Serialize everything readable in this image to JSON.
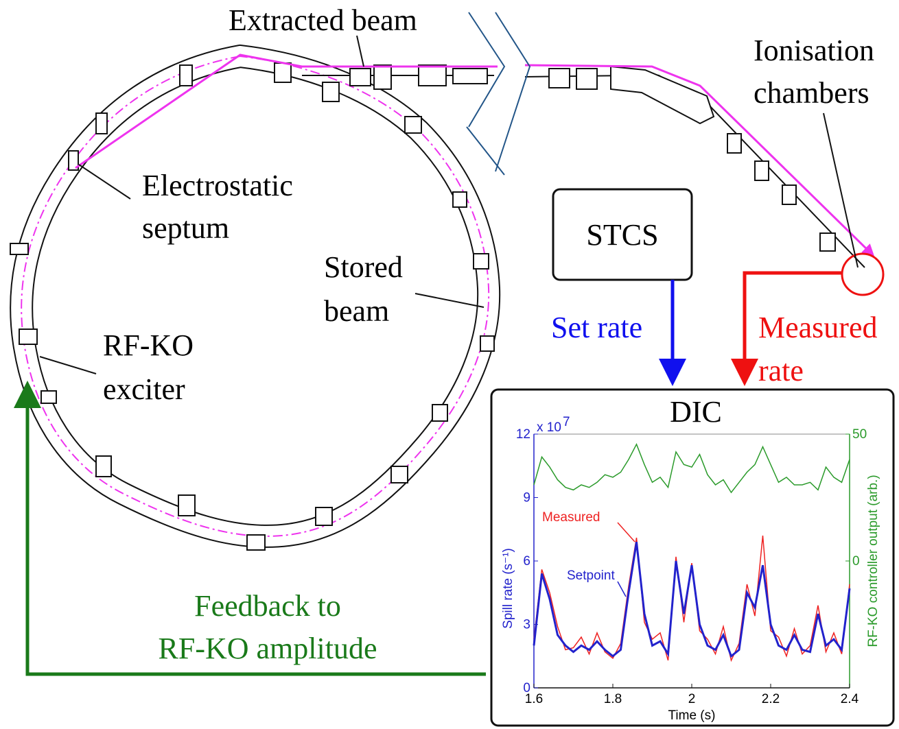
{
  "labels": {
    "extracted_beam": "Extracted beam",
    "ionisation_1": "Ionisation",
    "ionisation_2": "chambers",
    "septum_1": "Electrostatic",
    "septum_2": "septum",
    "stored_1": "Stored",
    "stored_2": "beam",
    "rfko_1": "RF-KO",
    "rfko_2": "exciter",
    "stcs": "STCS",
    "set_rate": "Set rate",
    "measured_1": "Measured",
    "measured_2": "rate",
    "feedback_1": "Feedback to",
    "feedback_2": "RF-KO amplitude",
    "dic": "DIC"
  },
  "chart_data": {
    "type": "line",
    "xlabel": "Time (s)",
    "ylabel": "Spill rate (s⁻¹)",
    "y_multiplier": "x 10",
    "y_multiplier_exp": "7",
    "y2label": "RF-KO controller output (arb.)",
    "x": [
      1.6,
      1.62,
      1.64,
      1.66,
      1.68,
      1.7,
      1.72,
      1.74,
      1.76,
      1.78,
      1.8,
      1.82,
      1.84,
      1.86,
      1.88,
      1.9,
      1.92,
      1.94,
      1.96,
      1.98,
      2,
      2.02,
      2.04,
      2.06,
      2.08,
      2.1,
      2.12,
      2.14,
      2.16,
      2.18,
      2.2,
      2.22,
      2.24,
      2.26,
      2.28,
      2.3,
      2.32,
      2.34,
      2.36,
      2.38,
      2.4
    ],
    "series": [
      {
        "name": "Measured",
        "color": "#ee2222",
        "values": [
          2.3,
          5.6,
          4.5,
          2.9,
          1.8,
          1.9,
          2.4,
          1.6,
          2.6,
          1.7,
          1.4,
          2.1,
          4.8,
          7.1,
          3.1,
          2.3,
          2.6,
          1.3,
          6.2,
          3.1,
          5.9,
          2.7,
          2.3,
          1.6,
          2.9,
          1.3,
          2.1,
          4.9,
          3.4,
          7.2,
          2.7,
          2.4,
          1.5,
          2.8,
          1.6,
          2,
          3.9,
          1.7,
          2.6,
          1.6,
          4.9
        ]
      },
      {
        "name": "Setpoint",
        "color": "#2222cc",
        "values": [
          2,
          5.4,
          4.2,
          2.5,
          2,
          1.7,
          2,
          1.8,
          2.2,
          1.8,
          1.5,
          1.8,
          4.5,
          6.9,
          3.5,
          2,
          2.2,
          1.6,
          6,
          3.5,
          5.8,
          3,
          2,
          1.8,
          2.5,
          1.5,
          1.8,
          4.5,
          3.8,
          5.8,
          3,
          2,
          1.8,
          2.5,
          1.8,
          1.7,
          3.5,
          2,
          2.3,
          1.8,
          4.7
        ]
      },
      {
        "color": "#2a9a2a",
        "axis": "y2",
        "values": [
          30,
          41,
          37,
          32,
          29,
          28,
          30,
          29,
          31,
          34,
          33,
          35,
          40,
          46,
          38,
          31,
          33,
          29,
          43,
          38,
          37,
          42,
          34,
          30,
          32,
          27,
          31,
          35,
          38,
          45,
          38,
          31,
          33,
          30,
          30,
          31,
          28,
          37,
          33,
          31,
          40
        ]
      }
    ],
    "xlim": [
      1.6,
      2.4
    ],
    "xticks": [
      1.6,
      1.8,
      2,
      2.2,
      2.4
    ],
    "ylim": [
      0,
      12
    ],
    "yticks": [
      0,
      3,
      6,
      9,
      12
    ],
    "y2lim": [
      -50,
      50
    ],
    "y2ticks": [
      0,
      50
    ]
  }
}
